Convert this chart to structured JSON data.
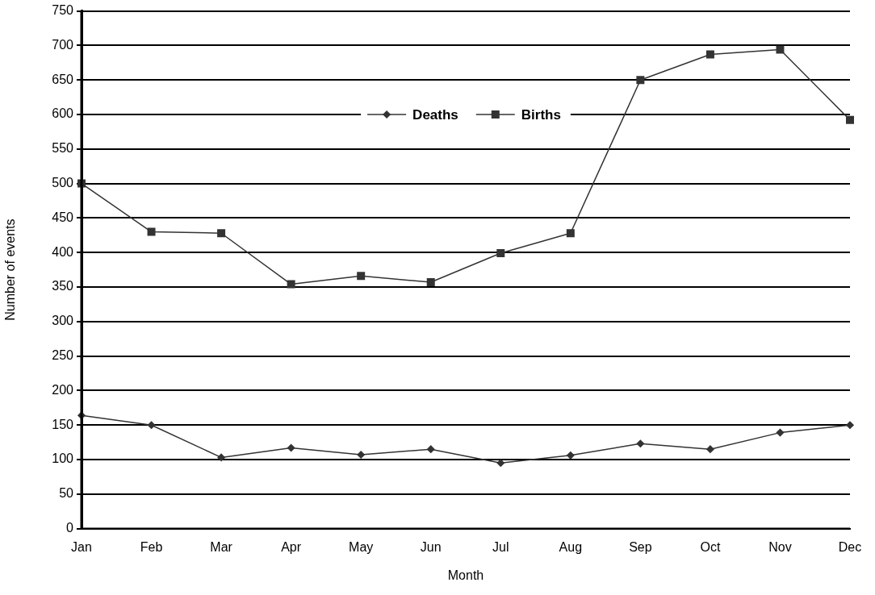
{
  "chart_data": {
    "type": "line",
    "xlabel": "Month",
    "ylabel": "Number of events",
    "categories": [
      "Jan",
      "Feb",
      "Mar",
      "Apr",
      "May",
      "Jun",
      "Jul",
      "Aug",
      "Sep",
      "Oct",
      "Nov",
      "Dec"
    ],
    "series": [
      {
        "name": "Deaths",
        "color": "#333333",
        "marker": "diamond",
        "values": [
          164,
          150,
          103,
          117,
          107,
          115,
          95,
          106,
          123,
          115,
          139,
          150
        ]
      },
      {
        "name": "Births",
        "color": "#333333",
        "marker": "square",
        "values": [
          500,
          430,
          428,
          354,
          366,
          357,
          399,
          428,
          650,
          687,
          694,
          592
        ]
      }
    ],
    "ylim": [
      0,
      750
    ],
    "yticks": [
      0,
      50,
      100,
      150,
      200,
      250,
      300,
      350,
      400,
      450,
      500,
      550,
      600,
      650,
      700,
      750
    ],
    "grid": "y",
    "legend": "top",
    "line_style": "solid"
  }
}
